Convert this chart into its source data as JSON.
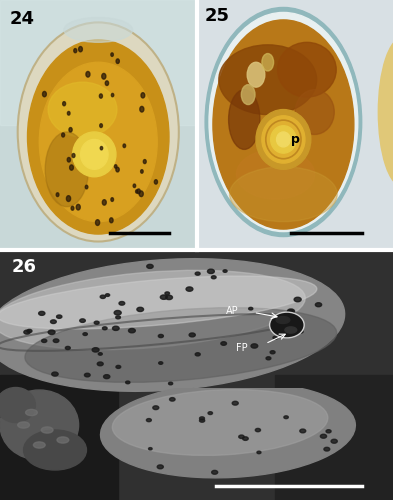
{
  "fig_width": 3.93,
  "fig_height": 5.0,
  "dpi": 100,
  "panel24": {
    "label": "24",
    "bg_color": "#c8d8d8",
    "cell_main": "#c8940a",
    "cell_bright": "#e0b020",
    "cell_wall": "#d8caa0",
    "pyrenoid_color": "#e8d060",
    "scale_bar_color": "#000000"
  },
  "panel25": {
    "label": "25",
    "bg_color": "#d0dce0",
    "wall_color": "#88b8b8",
    "cell_amber": "#b87010",
    "cell_orange": "#c88018",
    "pyrenoid_outer": "#d8a030",
    "pyrenoid_inner": "#e8c050",
    "pyrenoid_label": "p",
    "scale_bar_color": "#000000"
  },
  "panel26": {
    "label": "26",
    "bg_color": "#282828",
    "cell_light": "#b8b8b8",
    "cell_mid": "#989898",
    "cell_dark": "#787878",
    "cell2_color": "#909090",
    "debris_color": "#686868",
    "ap_label": "AP",
    "fp_label": "FP",
    "scale_bar_color": "#ffffff"
  }
}
